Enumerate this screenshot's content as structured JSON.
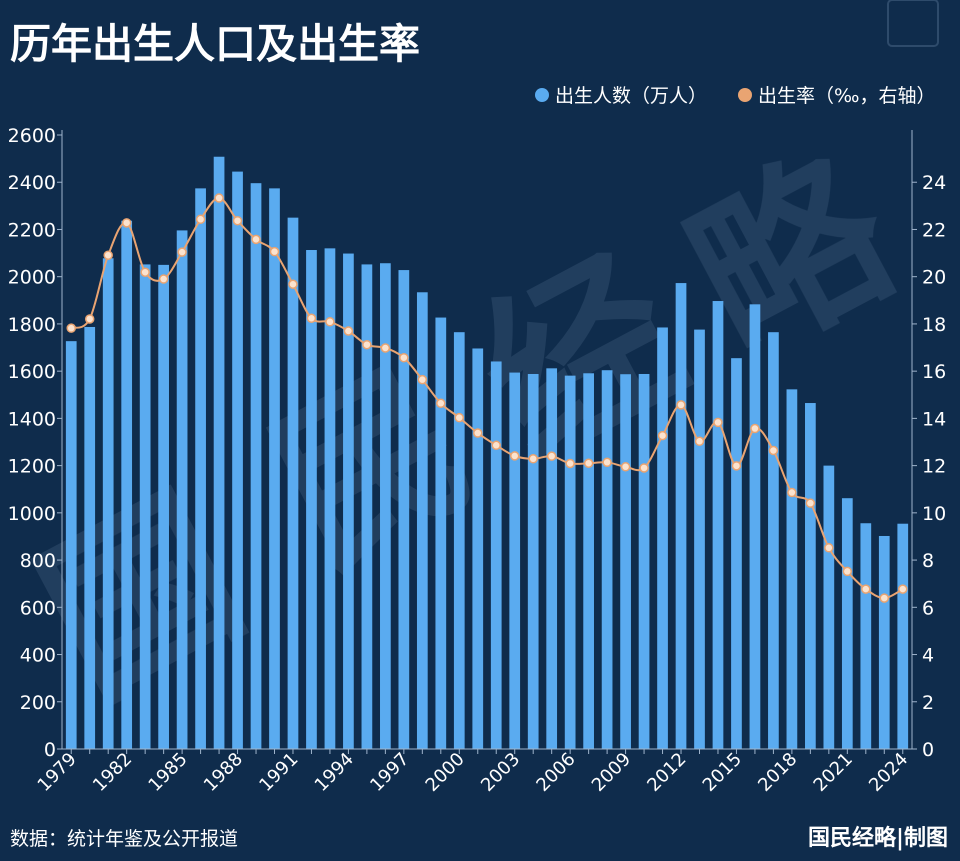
{
  "chart_data": {
    "type": "bar+line",
    "title": "历年出生人口及出生率",
    "legend": {
      "placement": "top-right",
      "items": [
        {
          "label": "出生人数（万人）",
          "color": "#5aabf0",
          "marker": "circle"
        },
        {
          "label": "出生率（‰，右轴）",
          "color": "#e9a472",
          "marker": "circle"
        }
      ]
    },
    "x": [
      1979,
      1980,
      1981,
      1982,
      1983,
      1984,
      1985,
      1986,
      1987,
      1988,
      1989,
      1990,
      1991,
      1992,
      1993,
      1994,
      1995,
      1996,
      1997,
      1998,
      1999,
      2000,
      2001,
      2002,
      2003,
      2004,
      2005,
      2006,
      2007,
      2008,
      2009,
      2010,
      2011,
      2012,
      2013,
      2014,
      2015,
      2016,
      2017,
      2018,
      2019,
      2020,
      2021,
      2022,
      2023,
      2024
    ],
    "x_tick_labels": [
      "1979",
      "1982",
      "1985",
      "1988",
      "1991",
      "1994",
      "1997",
      "2000",
      "2003",
      "2006",
      "2009",
      "2012",
      "2015",
      "2018",
      "2021",
      "2024"
    ],
    "y_left_ticks": [
      "0",
      "200",
      "400",
      "600",
      "800",
      "1000",
      "1200",
      "1400",
      "1600",
      "1800",
      "2000",
      "2200",
      "2400",
      "2600"
    ],
    "y_right_ticks": [
      "0",
      "2",
      "4",
      "6",
      "8",
      "10",
      "12",
      "14",
      "16",
      "18",
      "20",
      "22",
      "24"
    ],
    "ylim_left": [
      0,
      2600
    ],
    "ylim_right": [
      0,
      26
    ],
    "grid": false,
    "series": [
      {
        "name": "出生人数（万人）",
        "type": "bar",
        "axis": "left",
        "values": [
          1727,
          1787,
          2078,
          2237,
          2052,
          2050,
          2196,
          2374,
          2508,
          2445,
          2396,
          2374,
          2250,
          2113,
          2120,
          2098,
          2052,
          2057,
          2028,
          1934,
          1827,
          1765,
          1696,
          1641,
          1594,
          1588,
          1612,
          1581,
          1591,
          1604,
          1587,
          1588,
          1785,
          1973,
          1776,
          1897,
          1655,
          1883,
          1765,
          1523,
          1465,
          1200,
          1062,
          956,
          902,
          954
        ]
      },
      {
        "name": "出生率（‰，右轴）",
        "type": "line",
        "axis": "right",
        "values": [
          17.82,
          18.21,
          20.91,
          22.28,
          20.19,
          19.9,
          21.04,
          22.43,
          23.33,
          22.37,
          21.58,
          21.06,
          19.68,
          18.24,
          18.09,
          17.7,
          17.12,
          16.98,
          16.57,
          15.64,
          14.64,
          14.03,
          13.38,
          12.86,
          12.41,
          12.29,
          12.4,
          12.09,
          12.1,
          12.14,
          11.95,
          11.9,
          13.27,
          14.57,
          13.03,
          13.83,
          11.99,
          13.57,
          12.64,
          10.86,
          10.41,
          8.52,
          7.52,
          6.77,
          6.39,
          6.77
        ]
      }
    ],
    "colors": {
      "background": "#0f2c4c",
      "bar": "#5aabf0",
      "line": "#e9a472",
      "text": "#ffffff",
      "axis": "#9fb4cc"
    }
  },
  "source_note": "数据：统计年鉴及公开报道",
  "brand": "国民经略|制图",
  "watermark": "国民经略"
}
